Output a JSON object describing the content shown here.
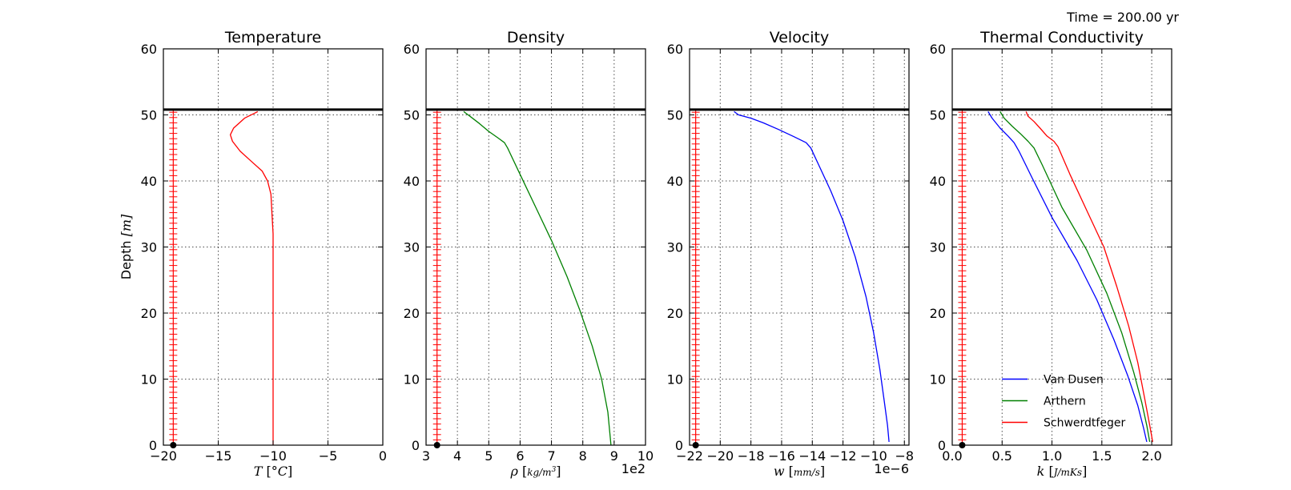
{
  "time_label": "Time = 200.00 yr",
  "chart_data": [
    {
      "type": "line",
      "title": "Temperature",
      "ylabel": "Depth [m]",
      "xlabel": "T [°C]",
      "xlim": [
        -20,
        0
      ],
      "ylim": [
        0,
        60
      ],
      "xticks": [
        -20,
        -15,
        -10,
        -5,
        0
      ],
      "xtick_labels": [
        "−20",
        "−15",
        "−10",
        "−5",
        "0"
      ],
      "yticks": [
        0,
        10,
        20,
        30,
        40,
        50,
        60
      ],
      "ytick_labels": [
        "0",
        "10",
        "20",
        "30",
        "40",
        "50",
        "60"
      ],
      "grid": true,
      "surface_depth": 50.8,
      "node_marker_x": -19.1,
      "series": [
        {
          "color": "#ff0000",
          "x": [
            -11.4,
            -12.6,
            -13.6,
            -13.9,
            -13.7,
            -13.0,
            -12.0,
            -11.0,
            -10.5,
            -10.2,
            -10.1,
            -10.0,
            -10.0,
            -10.0,
            -10.0
          ],
          "y": [
            50.5,
            49.5,
            48.0,
            47.0,
            46.0,
            44.5,
            43.0,
            41.5,
            40.0,
            38.0,
            35.0,
            32.0,
            28.0,
            15.0,
            0.0
          ]
        }
      ]
    },
    {
      "type": "line",
      "title": "Density",
      "xlabel": "ρ [kg/m³]",
      "xlim": [
        3,
        10
      ],
      "ylim": [
        0,
        60
      ],
      "xticks": [
        3,
        4,
        5,
        6,
        7,
        8,
        9,
        10
      ],
      "xtick_labels": [
        "3",
        "4",
        "5",
        "6",
        "7",
        "8",
        "9",
        "10"
      ],
      "x_multiplier": "1e2",
      "yticks": [
        0,
        10,
        20,
        30,
        40,
        50,
        60
      ],
      "ytick_labels": [
        "0",
        "10",
        "20",
        "30",
        "40",
        "50",
        "60"
      ],
      "grid": true,
      "surface_depth": 50.8,
      "node_marker_x": 3.35,
      "series": [
        {
          "color": "#008000",
          "x": [
            4.2,
            4.4,
            4.7,
            5.0,
            5.3,
            5.5,
            5.6,
            6.0,
            6.5,
            7.0,
            7.5,
            7.9,
            8.3,
            8.6,
            8.8,
            8.9
          ],
          "y": [
            50.5,
            49.8,
            48.7,
            47.5,
            46.5,
            45.8,
            45.0,
            41.0,
            36.0,
            31.0,
            25.5,
            20.5,
            15.0,
            10.0,
            5.0,
            0.0
          ]
        }
      ]
    },
    {
      "type": "line",
      "title": "Velocity",
      "xlabel": "w [mm/s]",
      "xlim": [
        -22,
        -7.7
      ],
      "ylim": [
        0,
        60
      ],
      "xticks": [
        -22,
        -20,
        -18,
        -16,
        -14,
        -12,
        -10,
        -8
      ],
      "xtick_labels": [
        "−22",
        "−20",
        "−18",
        "−16",
        "−14",
        "−12",
        "−10",
        "−8"
      ],
      "x_multiplier": "1e−6",
      "yticks": [
        0,
        10,
        20,
        30,
        40,
        50,
        60
      ],
      "ytick_labels": [
        "0",
        "10",
        "20",
        "30",
        "40",
        "50",
        "60"
      ],
      "grid": true,
      "surface_depth": 50.8,
      "node_marker_x": -21.6,
      "series": [
        {
          "color": "#0000ff",
          "x": [
            -19.1,
            -18.8,
            -18.0,
            -17.2,
            -16.2,
            -15.2,
            -14.4,
            -14.1,
            -13.5,
            -12.8,
            -12.0,
            -11.2,
            -10.5,
            -10.0,
            -9.6,
            -9.3,
            -9.1,
            -9.0
          ],
          "y": [
            50.5,
            50.0,
            49.5,
            48.8,
            47.8,
            46.7,
            45.8,
            45.0,
            42.0,
            38.5,
            34.0,
            28.5,
            22.5,
            17.0,
            11.5,
            6.5,
            3.0,
            0.5
          ]
        }
      ]
    },
    {
      "type": "line",
      "title": "Thermal Conductivity",
      "xlabel": "k [J/(mKs)]",
      "xlim": [
        0.0,
        2.2
      ],
      "ylim": [
        0,
        60
      ],
      "xticks": [
        0.0,
        0.5,
        1.0,
        1.5,
        2.0
      ],
      "xtick_labels": [
        "0.0",
        "0.5",
        "1.0",
        "1.5",
        "2.0"
      ],
      "yticks": [
        0,
        10,
        20,
        30,
        40,
        50,
        60
      ],
      "ytick_labels": [
        "0",
        "10",
        "20",
        "30",
        "40",
        "50",
        "60"
      ],
      "grid": true,
      "surface_depth": 50.8,
      "node_marker_x": 0.1,
      "legend": {
        "placement": "lower-center"
      },
      "series": [
        {
          "name": "Van Dusen",
          "color": "#0000ff",
          "x": [
            0.36,
            0.4,
            0.48,
            0.56,
            0.62,
            0.67,
            0.8,
            1.0,
            1.25,
            1.45,
            1.62,
            1.76,
            1.86,
            1.92,
            1.95
          ],
          "y": [
            50.5,
            49.5,
            48.0,
            46.8,
            45.8,
            44.5,
            40.5,
            34.5,
            28.0,
            22.0,
            16.0,
            10.5,
            6.0,
            2.5,
            0.5
          ]
        },
        {
          "name": "Arthern",
          "color": "#008000",
          "x": [
            0.48,
            0.52,
            0.6,
            0.68,
            0.76,
            0.82,
            0.9,
            1.1,
            1.35,
            1.55,
            1.7,
            1.82,
            1.9,
            1.95,
            1.98
          ],
          "y": [
            50.5,
            49.5,
            48.3,
            47.2,
            46.0,
            45.0,
            42.5,
            36.0,
            29.5,
            23.0,
            17.0,
            11.0,
            6.5,
            3.0,
            0.5
          ]
        },
        {
          "name": "Schwerdtfeger",
          "color": "#ff0000",
          "x": [
            0.74,
            0.76,
            0.82,
            0.88,
            0.95,
            1.02,
            1.06,
            1.18,
            1.35,
            1.52,
            1.65,
            1.77,
            1.86,
            1.93,
            1.98,
            2.01
          ],
          "y": [
            50.5,
            49.8,
            49.0,
            48.0,
            46.8,
            46.0,
            45.2,
            41.0,
            35.5,
            30.0,
            24.0,
            18.0,
            12.5,
            7.0,
            3.0,
            0.5
          ]
        }
      ]
    }
  ]
}
